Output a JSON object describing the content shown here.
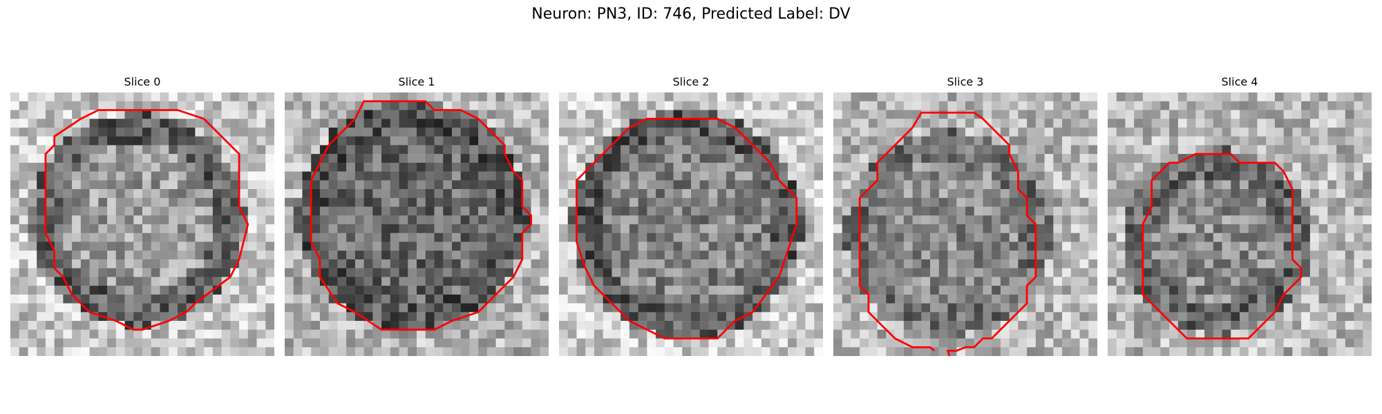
{
  "figure": {
    "title": "Neuron: PN3, ID: 746, Predicted Label: DV"
  },
  "panels": [
    {
      "title": "Slice 0"
    },
    {
      "title": "Slice 1"
    },
    {
      "title": "Slice 2"
    },
    {
      "title": "Slice 3"
    },
    {
      "title": "Slice 4"
    }
  ],
  "colors": {
    "contour": "#ff0000",
    "background": "#ffffff"
  },
  "image_style": {
    "colormap": "grayscale",
    "grid_size": 30
  }
}
